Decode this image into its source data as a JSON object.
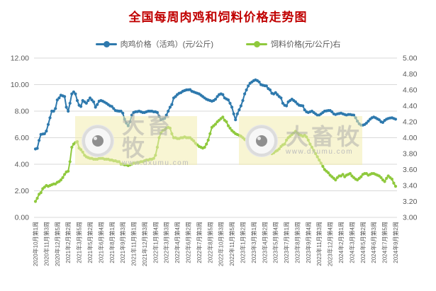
{
  "page": {
    "title": "全国每周肉鸡和饲料价格走势图",
    "title_color": "#c00000"
  },
  "legend": [
    {
      "label": "肉鸡价格（活鸡）(元/公斤)",
      "color": "#2e79ad"
    },
    {
      "label": "饲料价格(元/公斤)右",
      "color": "#8fc93d"
    }
  ],
  "watermark": {
    "brand": "大畜牧",
    "url": "www.dxumu.com"
  },
  "chart_data": {
    "type": "line",
    "title": "全国每周肉鸡和饲料价格走势图",
    "grid": true,
    "legend_position": "top",
    "left_axis": {
      "min": 0,
      "max": 12,
      "step": 2,
      "ticks": [
        "12.00",
        "10.00",
        "8.00",
        "6.00",
        "4.00",
        "2.00",
        "0.00"
      ]
    },
    "right_axis": {
      "min": 3,
      "max": 5,
      "step": 0.2,
      "ticks": [
        "5.00",
        "4.80",
        "4.60",
        "4.40",
        "4.20",
        "4.00",
        "3.80",
        "3.60",
        "3.40",
        "3.20",
        "3.00"
      ]
    },
    "x_label_every": 6,
    "x_labels": [
      "2020年10月第1周",
      "2020年11月第3周",
      "2020年12月第5周",
      "2021年2月第2周",
      "2021年3月第5周",
      "2021年5月第2周",
      "2021年6月第4周",
      "2021年8月第1周",
      "2021年9月第3周",
      "2021年11月第1周",
      "2021年12月第3周",
      "2022年1月第4周",
      "2022年3月第3周",
      "2022年4月第4周",
      "2022年6月第2周",
      "2022年7月第3周",
      "2022年8月第5周",
      "2022年10月第3周",
      "2022年11月第5周",
      "2023年1月第2周",
      "2023年3月第1周",
      "2023年4月第2周",
      "2023年5月第4周",
      "2023年7月第1周",
      "2023年8月第3周",
      "2023年9月第4周",
      "2023年11月第3周",
      "2023年12月第4周",
      "2024年2月第1周",
      "2024年3月第4周",
      "2024年5月第2周",
      "2024年6月第3周",
      "2024年7月第5周",
      "2024年9月第2周"
    ],
    "series": [
      {
        "name": "肉鸡价格（活鸡）(元/公斤)",
        "axis": "left",
        "color": "#2e79ad",
        "values": [
          5.15,
          5.2,
          5.8,
          6.25,
          6.28,
          6.3,
          6.5,
          7.0,
          7.5,
          8.0,
          8.0,
          8.2,
          8.85,
          9.0,
          9.2,
          9.15,
          9.1,
          8.3,
          8.0,
          8.6,
          9.3,
          9.45,
          9.3,
          8.8,
          8.45,
          8.35,
          8.8,
          8.7,
          8.6,
          8.8,
          9.0,
          8.85,
          8.7,
          8.3,
          8.5,
          8.75,
          8.8,
          8.75,
          8.68,
          8.6,
          8.5,
          8.4,
          8.35,
          8.2,
          8.05,
          8.02,
          8.0,
          8.0,
          7.85,
          7.4,
          7.1,
          6.9,
          7.2,
          7.7,
          7.9,
          7.95,
          7.97,
          8.0,
          7.95,
          7.9,
          7.9,
          7.95,
          8.0,
          8.0,
          8.0,
          7.95,
          7.95,
          7.9,
          7.6,
          7.35,
          7.4,
          7.45,
          7.7,
          8.0,
          8.3,
          8.5,
          9.0,
          9.1,
          9.25,
          9.35,
          9.4,
          9.5,
          9.55,
          9.6,
          9.61,
          9.62,
          9.5,
          9.45,
          9.4,
          9.35,
          9.3,
          9.2,
          9.1,
          9.0,
          8.9,
          8.85,
          8.8,
          8.75,
          8.8,
          8.9,
          9.1,
          9.25,
          9.3,
          9.25,
          9.0,
          8.92,
          8.85,
          8.6,
          8.3,
          7.8,
          7.35,
          7.8,
          8.1,
          8.4,
          8.8,
          9.3,
          9.6,
          9.9,
          10.1,
          10.2,
          10.3,
          10.35,
          10.3,
          10.2,
          10.0,
          9.95,
          9.92,
          9.9,
          9.7,
          9.6,
          9.35,
          9.3,
          9.4,
          9.25,
          9.1,
          9.0,
          8.6,
          8.45,
          8.4,
          8.7,
          8.8,
          8.9,
          8.8,
          8.7,
          8.55,
          8.45,
          8.42,
          8.4,
          8.1,
          7.95,
          7.9,
          7.95,
          8.0,
          7.9,
          7.8,
          7.7,
          7.7,
          7.8,
          7.9,
          8.0,
          8.02,
          8.05,
          8.05,
          7.95,
          7.8,
          7.75,
          7.8,
          7.82,
          7.85,
          7.8,
          7.75,
          7.7,
          7.75,
          7.75,
          7.72,
          7.7,
          7.5,
          7.25,
          7.05,
          6.95,
          6.95,
          7.0,
          7.1,
          7.25,
          7.4,
          7.5,
          7.55,
          7.5,
          7.42,
          7.35,
          7.2,
          7.15,
          7.3,
          7.4,
          7.45,
          7.48,
          7.5,
          7.45,
          7.4
        ]
      },
      {
        "name": "饲料价格(元/公斤)右",
        "axis": "right",
        "color": "#8fc93d",
        "values": [
          3.2,
          3.24,
          3.29,
          3.31,
          3.36,
          3.38,
          3.4,
          3.39,
          3.4,
          3.41,
          3.42,
          3.42,
          3.44,
          3.45,
          3.47,
          3.5,
          3.54,
          3.57,
          3.58,
          3.7,
          3.88,
          3.92,
          3.94,
          3.95,
          3.87,
          3.85,
          3.82,
          3.78,
          3.76,
          3.75,
          3.74,
          3.74,
          3.73,
          3.73,
          3.73,
          3.74,
          3.74,
          3.74,
          3.73,
          3.73,
          3.73,
          3.72,
          3.72,
          3.71,
          3.71,
          3.7,
          3.7,
          3.67,
          3.67,
          3.66,
          3.66,
          3.65,
          3.66,
          3.67,
          3.68,
          3.68,
          3.69,
          3.69,
          3.7,
          3.7,
          3.71,
          3.72,
          3.72,
          3.73,
          3.73,
          3.74,
          3.78,
          3.88,
          4.0,
          4.06,
          4.09,
          4.1,
          4.12,
          4.13,
          4.12,
          4.05,
          4.0,
          4.0,
          3.99,
          3.99,
          4.0,
          4.0,
          4.01,
          4.0,
          4.0,
          4.0,
          3.98,
          3.96,
          3.93,
          3.91,
          3.89,
          3.88,
          3.87,
          3.88,
          3.92,
          3.97,
          4.05,
          4.13,
          4.15,
          4.17,
          4.2,
          4.22,
          4.24,
          4.26,
          4.22,
          4.2,
          4.15,
          4.12,
          4.09,
          4.07,
          4.05,
          4.04,
          4.03,
          4.02,
          4.0,
          3.98,
          3.96,
          3.94,
          3.92,
          3.91,
          3.9,
          3.89,
          3.88,
          3.86,
          3.86,
          3.85,
          3.84,
          3.84,
          3.83,
          3.81,
          3.8,
          3.81,
          3.83,
          3.84,
          3.86,
          3.89,
          3.91,
          3.92,
          3.97,
          4.0,
          4.02,
          4.04,
          4.06,
          4.08,
          4.06,
          4.04,
          4.03,
          4.02,
          4.03,
          4.01,
          3.97,
          3.92,
          3.88,
          3.84,
          3.8,
          3.76,
          3.72,
          3.68,
          3.64,
          3.6,
          3.58,
          3.56,
          3.53,
          3.51,
          3.49,
          3.47,
          3.5,
          3.52,
          3.52,
          3.54,
          3.51,
          3.53,
          3.54,
          3.55,
          3.52,
          3.5,
          3.48,
          3.47,
          3.49,
          3.51,
          3.54,
          3.55,
          3.55,
          3.53,
          3.54,
          3.55,
          3.55,
          3.54,
          3.53,
          3.52,
          3.5,
          3.47,
          3.45,
          3.49,
          3.52,
          3.5,
          3.48,
          3.43,
          3.39
        ]
      }
    ]
  }
}
